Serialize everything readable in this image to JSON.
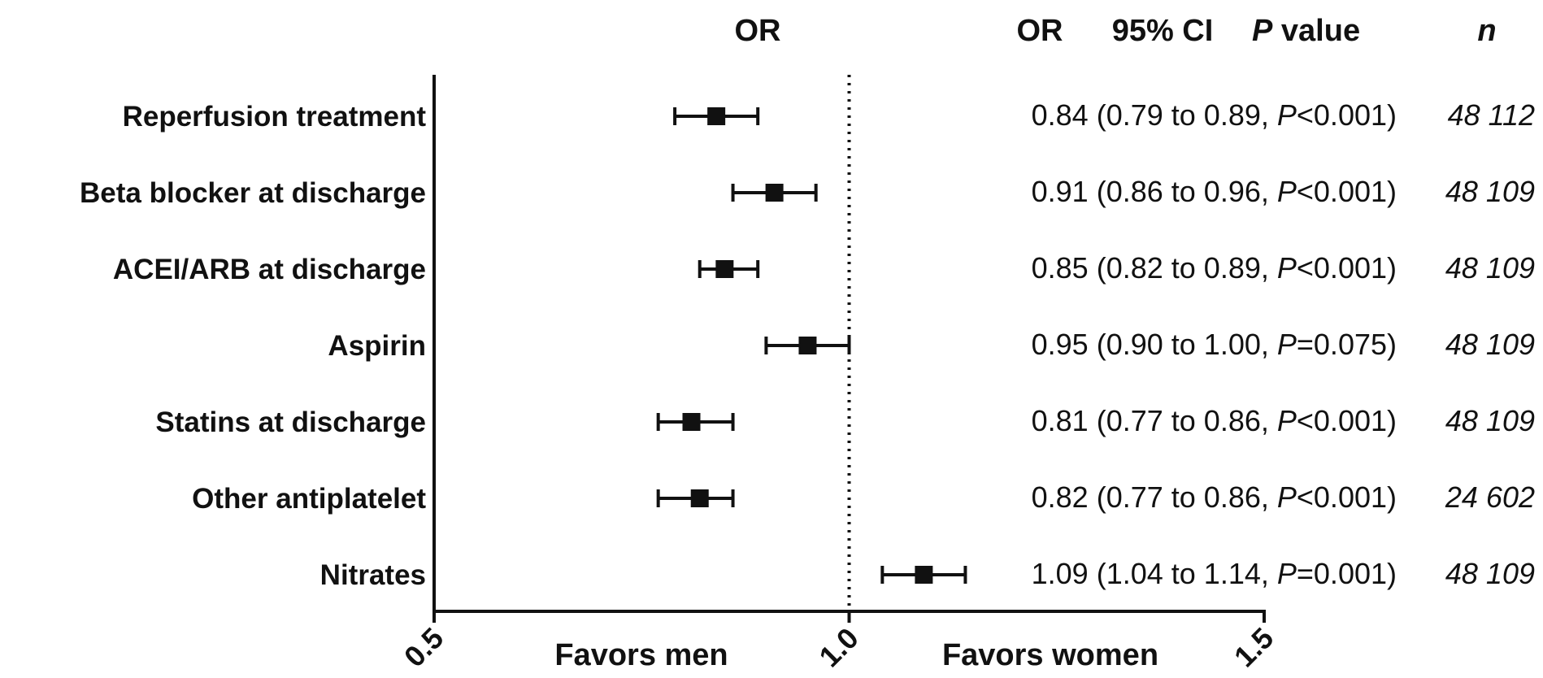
{
  "chart_data": {
    "type": "forest",
    "xscale": "linear",
    "xlim": [
      0.5,
      1.5
    ],
    "xticks": [
      "0.5",
      "1.0",
      "1.5"
    ],
    "reference_line": 1.0,
    "headers": {
      "plot": "OR",
      "or": "OR",
      "ci": "95% CI",
      "p_italic": "P",
      "p_rest": " value",
      "n": "n"
    },
    "favors": {
      "left": "Favors men",
      "right": "Favors women"
    },
    "rows": [
      {
        "label": "Reperfusion treatment",
        "or": 0.84,
        "lo": 0.79,
        "hi": 0.89,
        "stat_prefix": "0.84 (0.79 to 0.89, ",
        "p_italic": "P",
        "stat_suffix": "<0.001)",
        "n": "48 112"
      },
      {
        "label": "Beta blocker at discharge",
        "or": 0.91,
        "lo": 0.86,
        "hi": 0.96,
        "stat_prefix": "0.91 (0.86 to 0.96, ",
        "p_italic": "P",
        "stat_suffix": "<0.001)",
        "n": "48 109"
      },
      {
        "label": "ACEI/ARB at discharge",
        "or": 0.85,
        "lo": 0.82,
        "hi": 0.89,
        "stat_prefix": "0.85 (0.82 to 0.89, ",
        "p_italic": "P",
        "stat_suffix": "<0.001)",
        "n": "48 109"
      },
      {
        "label": "Aspirin",
        "or": 0.95,
        "lo": 0.9,
        "hi": 1.0,
        "stat_prefix": "0.95 (0.90 to 1.00, ",
        "p_italic": "P",
        "stat_suffix": "=0.075)",
        "n": "48 109"
      },
      {
        "label": "Statins at discharge",
        "or": 0.81,
        "lo": 0.77,
        "hi": 0.86,
        "stat_prefix": "0.81 (0.77 to 0.86, ",
        "p_italic": "P",
        "stat_suffix": "<0.001)",
        "n": "48 109"
      },
      {
        "label": "Other antiplatelet",
        "or": 0.82,
        "lo": 0.77,
        "hi": 0.86,
        "stat_prefix": "0.82 (0.77 to 0.86, ",
        "p_italic": "P",
        "stat_suffix": "<0.001)",
        "n": "24 602"
      },
      {
        "label": "Nitrates",
        "or": 1.09,
        "lo": 1.04,
        "hi": 1.14,
        "stat_prefix": "1.09 (1.04 to 1.14, ",
        "p_italic": "P",
        "stat_suffix": "=0.001)",
        "n": "48 109"
      }
    ]
  }
}
